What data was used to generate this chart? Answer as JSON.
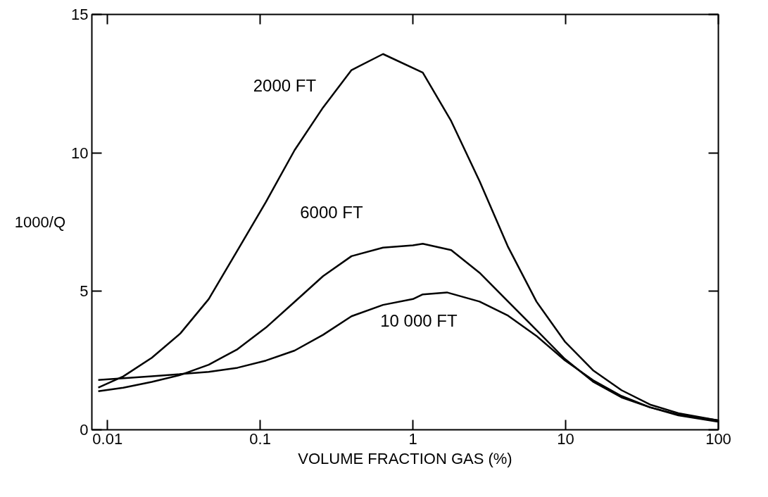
{
  "chart_data": {
    "type": "line",
    "xlabel": "VOLUME FRACTION GAS (%)",
    "ylabel": "1000/Q",
    "log": "x",
    "xlim": [
      0.0079,
      100
    ],
    "ylim": [
      0,
      15
    ],
    "xticks": [
      0.01,
      0.1,
      1,
      10,
      100
    ],
    "yticks": [
      0,
      5,
      10,
      15
    ],
    "grid": false,
    "legend": false,
    "marker": "none",
    "line_style": "solid",
    "series": [
      {
        "name": "2000 FT",
        "color": "#000000",
        "x": [
          0.0087,
          0.0127,
          0.0195,
          0.03,
          0.046,
          0.071,
          0.109,
          0.168,
          0.258,
          0.396,
          0.637,
          1.16,
          1.78,
          2.73,
          4.2,
          6.44,
          9.87,
          15.1,
          23.2,
          35.7,
          54.7,
          100
        ],
        "values": [
          1.52,
          1.93,
          2.6,
          3.48,
          4.72,
          6.48,
          8.23,
          10.1,
          11.64,
          12.99,
          13.57,
          12.9,
          11.15,
          8.98,
          6.6,
          4.63,
          3.19,
          2.15,
          1.43,
          0.91,
          0.6,
          0.34
        ]
      },
      {
        "name": "6000 FT",
        "color": "#000000",
        "x": [
          0.0087,
          0.0127,
          0.0195,
          0.03,
          0.046,
          0.071,
          0.109,
          0.168,
          0.258,
          0.396,
          0.637,
          1,
          1.16,
          1.78,
          2.73,
          4.2,
          6.44,
          9.87,
          15.1,
          23.2,
          35.7,
          54.7,
          100
        ],
        "values": [
          1.39,
          1.52,
          1.73,
          1.98,
          2.35,
          2.91,
          3.69,
          4.62,
          5.55,
          6.27,
          6.58,
          6.66,
          6.72,
          6.49,
          5.67,
          4.63,
          3.6,
          2.56,
          1.74,
          1.17,
          0.81,
          0.55,
          0.34
        ]
      },
      {
        "name": "10 000 FT",
        "color": "#000000",
        "x": [
          0.0087,
          0.0195,
          0.046,
          0.071,
          0.109,
          0.168,
          0.258,
          0.396,
          0.637,
          1,
          1.16,
          1.67,
          2.73,
          4.2,
          6.44,
          9.87,
          15.1,
          23.2,
          35.7,
          54.7,
          100
        ],
        "values": [
          1.8,
          1.93,
          2.09,
          2.24,
          2.5,
          2.86,
          3.43,
          4.1,
          4.51,
          4.72,
          4.89,
          4.96,
          4.63,
          4.12,
          3.39,
          2.51,
          1.79,
          1.22,
          0.81,
          0.52,
          0.29
        ]
      }
    ]
  }
}
